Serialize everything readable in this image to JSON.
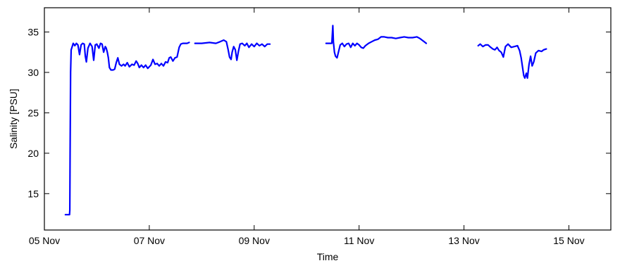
{
  "chart_data": {
    "type": "line",
    "title": "",
    "xlabel": "Time",
    "ylabel": "Salinity [PSU]",
    "xlim": [
      0,
      10.8
    ],
    "ylim": [
      10.5,
      38
    ],
    "x_unit": "days since 05 Nov",
    "x_ticks": [
      {
        "value": 0,
        "label": "05 Nov"
      },
      {
        "value": 2,
        "label": "07 Nov"
      },
      {
        "value": 4,
        "label": "09 Nov"
      },
      {
        "value": 6,
        "label": "11 Nov"
      },
      {
        "value": 8,
        "label": "13 Nov"
      },
      {
        "value": 10,
        "label": "15 Nov"
      }
    ],
    "y_ticks": [
      {
        "value": 15,
        "label": "15"
      },
      {
        "value": 20,
        "label": "20"
      },
      {
        "value": 25,
        "label": "25"
      },
      {
        "value": 30,
        "label": "30"
      },
      {
        "value": 35,
        "label": "35"
      }
    ],
    "grid": false,
    "line_color": "#0000ff",
    "series": [
      {
        "segments": [
          [
            [
              0.4,
              12.4
            ],
            [
              0.48,
              12.4
            ],
            [
              0.485,
              13.0
            ],
            [
              0.49,
              20.0
            ],
            [
              0.5,
              30.0
            ],
            [
              0.51,
              32.8
            ],
            [
              0.53,
              33.2
            ],
            [
              0.55,
              33.6
            ],
            [
              0.58,
              33.3
            ],
            [
              0.61,
              33.6
            ],
            [
              0.64,
              33.4
            ],
            [
              0.67,
              32.2
            ],
            [
              0.7,
              33.4
            ],
            [
              0.73,
              33.6
            ],
            [
              0.76,
              33.5
            ],
            [
              0.78,
              32.0
            ],
            [
              0.8,
              31.3
            ],
            [
              0.83,
              33.0
            ],
            [
              0.87,
              33.6
            ],
            [
              0.91,
              33.2
            ],
            [
              0.94,
              31.5
            ],
            [
              0.97,
              33.4
            ],
            [
              1.0,
              33.5
            ],
            [
              1.04,
              33.0
            ],
            [
              1.07,
              33.6
            ],
            [
              1.1,
              33.5
            ],
            [
              1.13,
              32.5
            ],
            [
              1.16,
              33.2
            ],
            [
              1.18,
              33.0
            ],
            [
              1.2,
              32.5
            ],
            [
              1.22,
              31.8
            ],
            [
              1.24,
              30.6
            ],
            [
              1.27,
              30.3
            ],
            [
              1.31,
              30.3
            ],
            [
              1.34,
              30.4
            ],
            [
              1.37,
              31.2
            ],
            [
              1.4,
              31.8
            ],
            [
              1.43,
              31.0
            ],
            [
              1.47,
              30.8
            ],
            [
              1.51,
              31.0
            ],
            [
              1.54,
              30.8
            ],
            [
              1.58,
              31.2
            ],
            [
              1.62,
              30.7
            ],
            [
              1.67,
              31.0
            ],
            [
              1.71,
              30.9
            ],
            [
              1.75,
              31.4
            ],
            [
              1.78,
              31.1
            ],
            [
              1.81,
              30.6
            ],
            [
              1.85,
              30.9
            ],
            [
              1.89,
              30.6
            ],
            [
              1.93,
              30.9
            ],
            [
              1.97,
              30.5
            ],
            [
              2.0,
              30.7
            ],
            [
              2.03,
              30.9
            ],
            [
              2.07,
              31.6
            ],
            [
              2.11,
              31.0
            ],
            [
              2.15,
              31.1
            ],
            [
              2.19,
              30.8
            ],
            [
              2.23,
              31.1
            ],
            [
              2.27,
              30.8
            ],
            [
              2.31,
              31.3
            ],
            [
              2.35,
              31.2
            ],
            [
              2.38,
              31.8
            ],
            [
              2.41,
              31.9
            ],
            [
              2.45,
              31.4
            ],
            [
              2.49,
              31.8
            ],
            [
              2.53,
              31.9
            ],
            [
              2.57,
              33.1
            ],
            [
              2.6,
              33.5
            ],
            [
              2.64,
              33.6
            ],
            [
              2.68,
              33.6
            ],
            [
              2.72,
              33.6
            ],
            [
              2.76,
              33.7
            ]
          ],
          [
            [
              2.87,
              33.6
            ],
            [
              3.0,
              33.6
            ],
            [
              3.15,
              33.7
            ],
            [
              3.27,
              33.6
            ],
            [
              3.35,
              33.8
            ],
            [
              3.42,
              34.0
            ],
            [
              3.47,
              33.8
            ],
            [
              3.5,
              32.9
            ],
            [
              3.53,
              31.9
            ],
            [
              3.56,
              31.6
            ],
            [
              3.58,
              32.5
            ],
            [
              3.61,
              33.2
            ],
            [
              3.64,
              32.8
            ],
            [
              3.67,
              31.5
            ],
            [
              3.7,
              32.6
            ],
            [
              3.73,
              33.5
            ],
            [
              3.77,
              33.6
            ],
            [
              3.82,
              33.3
            ],
            [
              3.86,
              33.6
            ],
            [
              3.9,
              33.1
            ],
            [
              3.95,
              33.5
            ],
            [
              4.0,
              33.2
            ],
            [
              4.05,
              33.6
            ],
            [
              4.1,
              33.3
            ],
            [
              4.15,
              33.5
            ],
            [
              4.2,
              33.2
            ],
            [
              4.25,
              33.5
            ],
            [
              4.3,
              33.5
            ]
          ],
          [
            [
              5.37,
              33.6
            ],
            [
              5.48,
              33.6
            ],
            [
              5.5,
              35.8
            ],
            [
              5.51,
              33.8
            ],
            [
              5.53,
              32.5
            ],
            [
              5.55,
              32.0
            ],
            [
              5.58,
              31.8
            ],
            [
              5.61,
              32.6
            ],
            [
              5.64,
              33.4
            ],
            [
              5.68,
              33.6
            ],
            [
              5.72,
              33.2
            ],
            [
              5.76,
              33.5
            ],
            [
              5.8,
              33.6
            ],
            [
              5.84,
              33.1
            ],
            [
              5.88,
              33.6
            ],
            [
              5.92,
              33.3
            ],
            [
              5.96,
              33.6
            ],
            [
              6.0,
              33.4
            ],
            [
              6.04,
              33.1
            ],
            [
              6.08,
              33.0
            ],
            [
              6.12,
              33.3
            ],
            [
              6.18,
              33.6
            ],
            [
              6.24,
              33.8
            ],
            [
              6.3,
              34.0
            ],
            [
              6.36,
              34.1
            ],
            [
              6.42,
              34.4
            ],
            [
              6.48,
              34.4
            ],
            [
              6.55,
              34.3
            ],
            [
              6.62,
              34.3
            ],
            [
              6.7,
              34.2
            ],
            [
              6.78,
              34.3
            ],
            [
              6.86,
              34.4
            ],
            [
              6.94,
              34.3
            ],
            [
              7.02,
              34.3
            ],
            [
              7.1,
              34.4
            ],
            [
              7.16,
              34.2
            ],
            [
              7.2,
              34.0
            ],
            [
              7.24,
              33.8
            ],
            [
              7.28,
              33.6
            ]
          ],
          [
            [
              8.27,
              33.3
            ],
            [
              8.31,
              33.5
            ],
            [
              8.36,
              33.2
            ],
            [
              8.41,
              33.4
            ],
            [
              8.46,
              33.4
            ],
            [
              8.51,
              33.1
            ],
            [
              8.55,
              32.9
            ],
            [
              8.59,
              32.8
            ],
            [
              8.63,
              33.1
            ],
            [
              8.67,
              32.7
            ],
            [
              8.71,
              32.5
            ],
            [
              8.75,
              31.9
            ],
            [
              8.79,
              33.2
            ],
            [
              8.84,
              33.5
            ],
            [
              8.9,
              33.1
            ],
            [
              8.96,
              33.2
            ],
            [
              9.02,
              33.3
            ],
            [
              9.06,
              32.7
            ],
            [
              9.09,
              31.8
            ],
            [
              9.12,
              30.5
            ],
            [
              9.14,
              29.6
            ],
            [
              9.16,
              29.3
            ],
            [
              9.19,
              29.9
            ],
            [
              9.21,
              29.3
            ],
            [
              9.24,
              31.0
            ],
            [
              9.27,
              32.0
            ],
            [
              9.3,
              30.8
            ],
            [
              9.33,
              31.3
            ],
            [
              9.37,
              32.4
            ],
            [
              9.42,
              32.7
            ],
            [
              9.48,
              32.6
            ],
            [
              9.52,
              32.8
            ],
            [
              9.57,
              32.9
            ]
          ]
        ]
      }
    ]
  }
}
